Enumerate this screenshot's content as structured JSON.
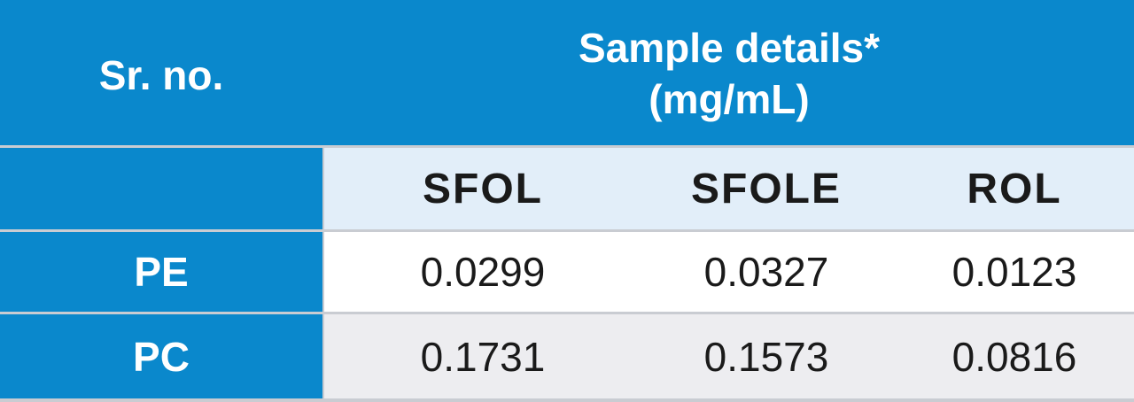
{
  "header": {
    "sr_no": "Sr. no.",
    "title_line1": "Sample details*",
    "title_line2": "(mg/mL)"
  },
  "columns": [
    "SFOL",
    "SFOLE",
    "ROL"
  ],
  "rows": [
    {
      "label": "PE",
      "values": [
        "0.0299",
        "0.0327",
        "0.0123"
      ]
    },
    {
      "label": "PC",
      "values": [
        "0.1731",
        "0.1573",
        "0.0816"
      ]
    }
  ],
  "colors": {
    "header_blue": "#0a88cc",
    "subheader_light_blue": "#e2eef9",
    "row_alt_gray": "#ededf0",
    "separator": "#c9ccd2"
  }
}
